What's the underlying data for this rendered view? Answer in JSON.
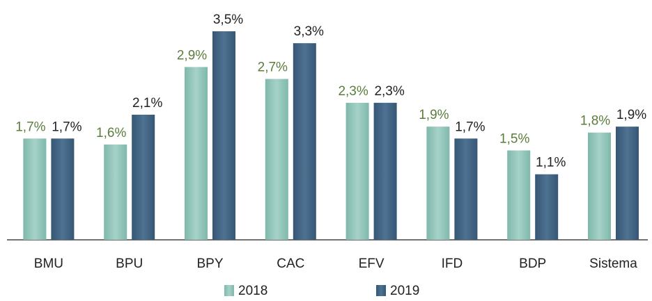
{
  "chart_data": {
    "type": "bar",
    "categories": [
      "BMU",
      "BPU",
      "BPY",
      "CAC",
      "EFV",
      "IFD",
      "BDP",
      "Sistema"
    ],
    "series": [
      {
        "name": "2018",
        "color": "#8cc2b6",
        "label_color": "#5b7d3c",
        "values": [
          1.7,
          1.6,
          2.9,
          2.7,
          2.3,
          1.9,
          1.5,
          1.8
        ],
        "value_labels": [
          "1,7%",
          "1,6%",
          "2,9%",
          "2,7%",
          "2,3%",
          "1,9%",
          "1,5%",
          "1,8%"
        ]
      },
      {
        "name": "2019",
        "color": "#3f6080",
        "label_color": "#222222",
        "values": [
          1.7,
          2.1,
          3.5,
          3.3,
          2.3,
          1.7,
          1.1,
          1.9
        ],
        "value_labels": [
          "1,7%",
          "2,1%",
          "3,5%",
          "3,3%",
          "2,3%",
          "1,7%",
          "1,1%",
          "1,9%"
        ]
      }
    ]
  }
}
